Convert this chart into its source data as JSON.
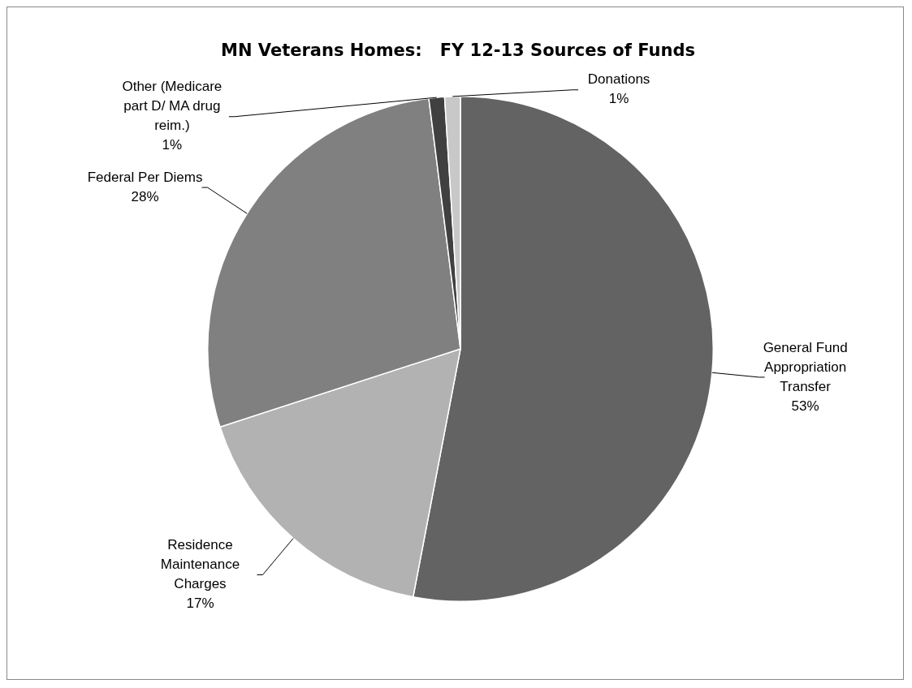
{
  "chart_data": {
    "type": "pie",
    "title": "MN Veterans Homes:   FY 12-13 Sources of Funds",
    "categories": [
      "General Fund Appropriation Transfer",
      "Residence Maintenance Charges",
      "Federal Per Diems",
      "Other (Medicare part D/ MA drug reim.)",
      "Donations"
    ],
    "values": [
      53,
      17,
      28,
      1,
      1
    ],
    "colors": [
      "#636363",
      "#b2b2b2",
      "#808080",
      "#404040",
      "#c8c8c8"
    ],
    "value_labels": [
      "53%",
      "17%",
      "28%",
      "1%",
      "1%"
    ],
    "legend": false
  }
}
